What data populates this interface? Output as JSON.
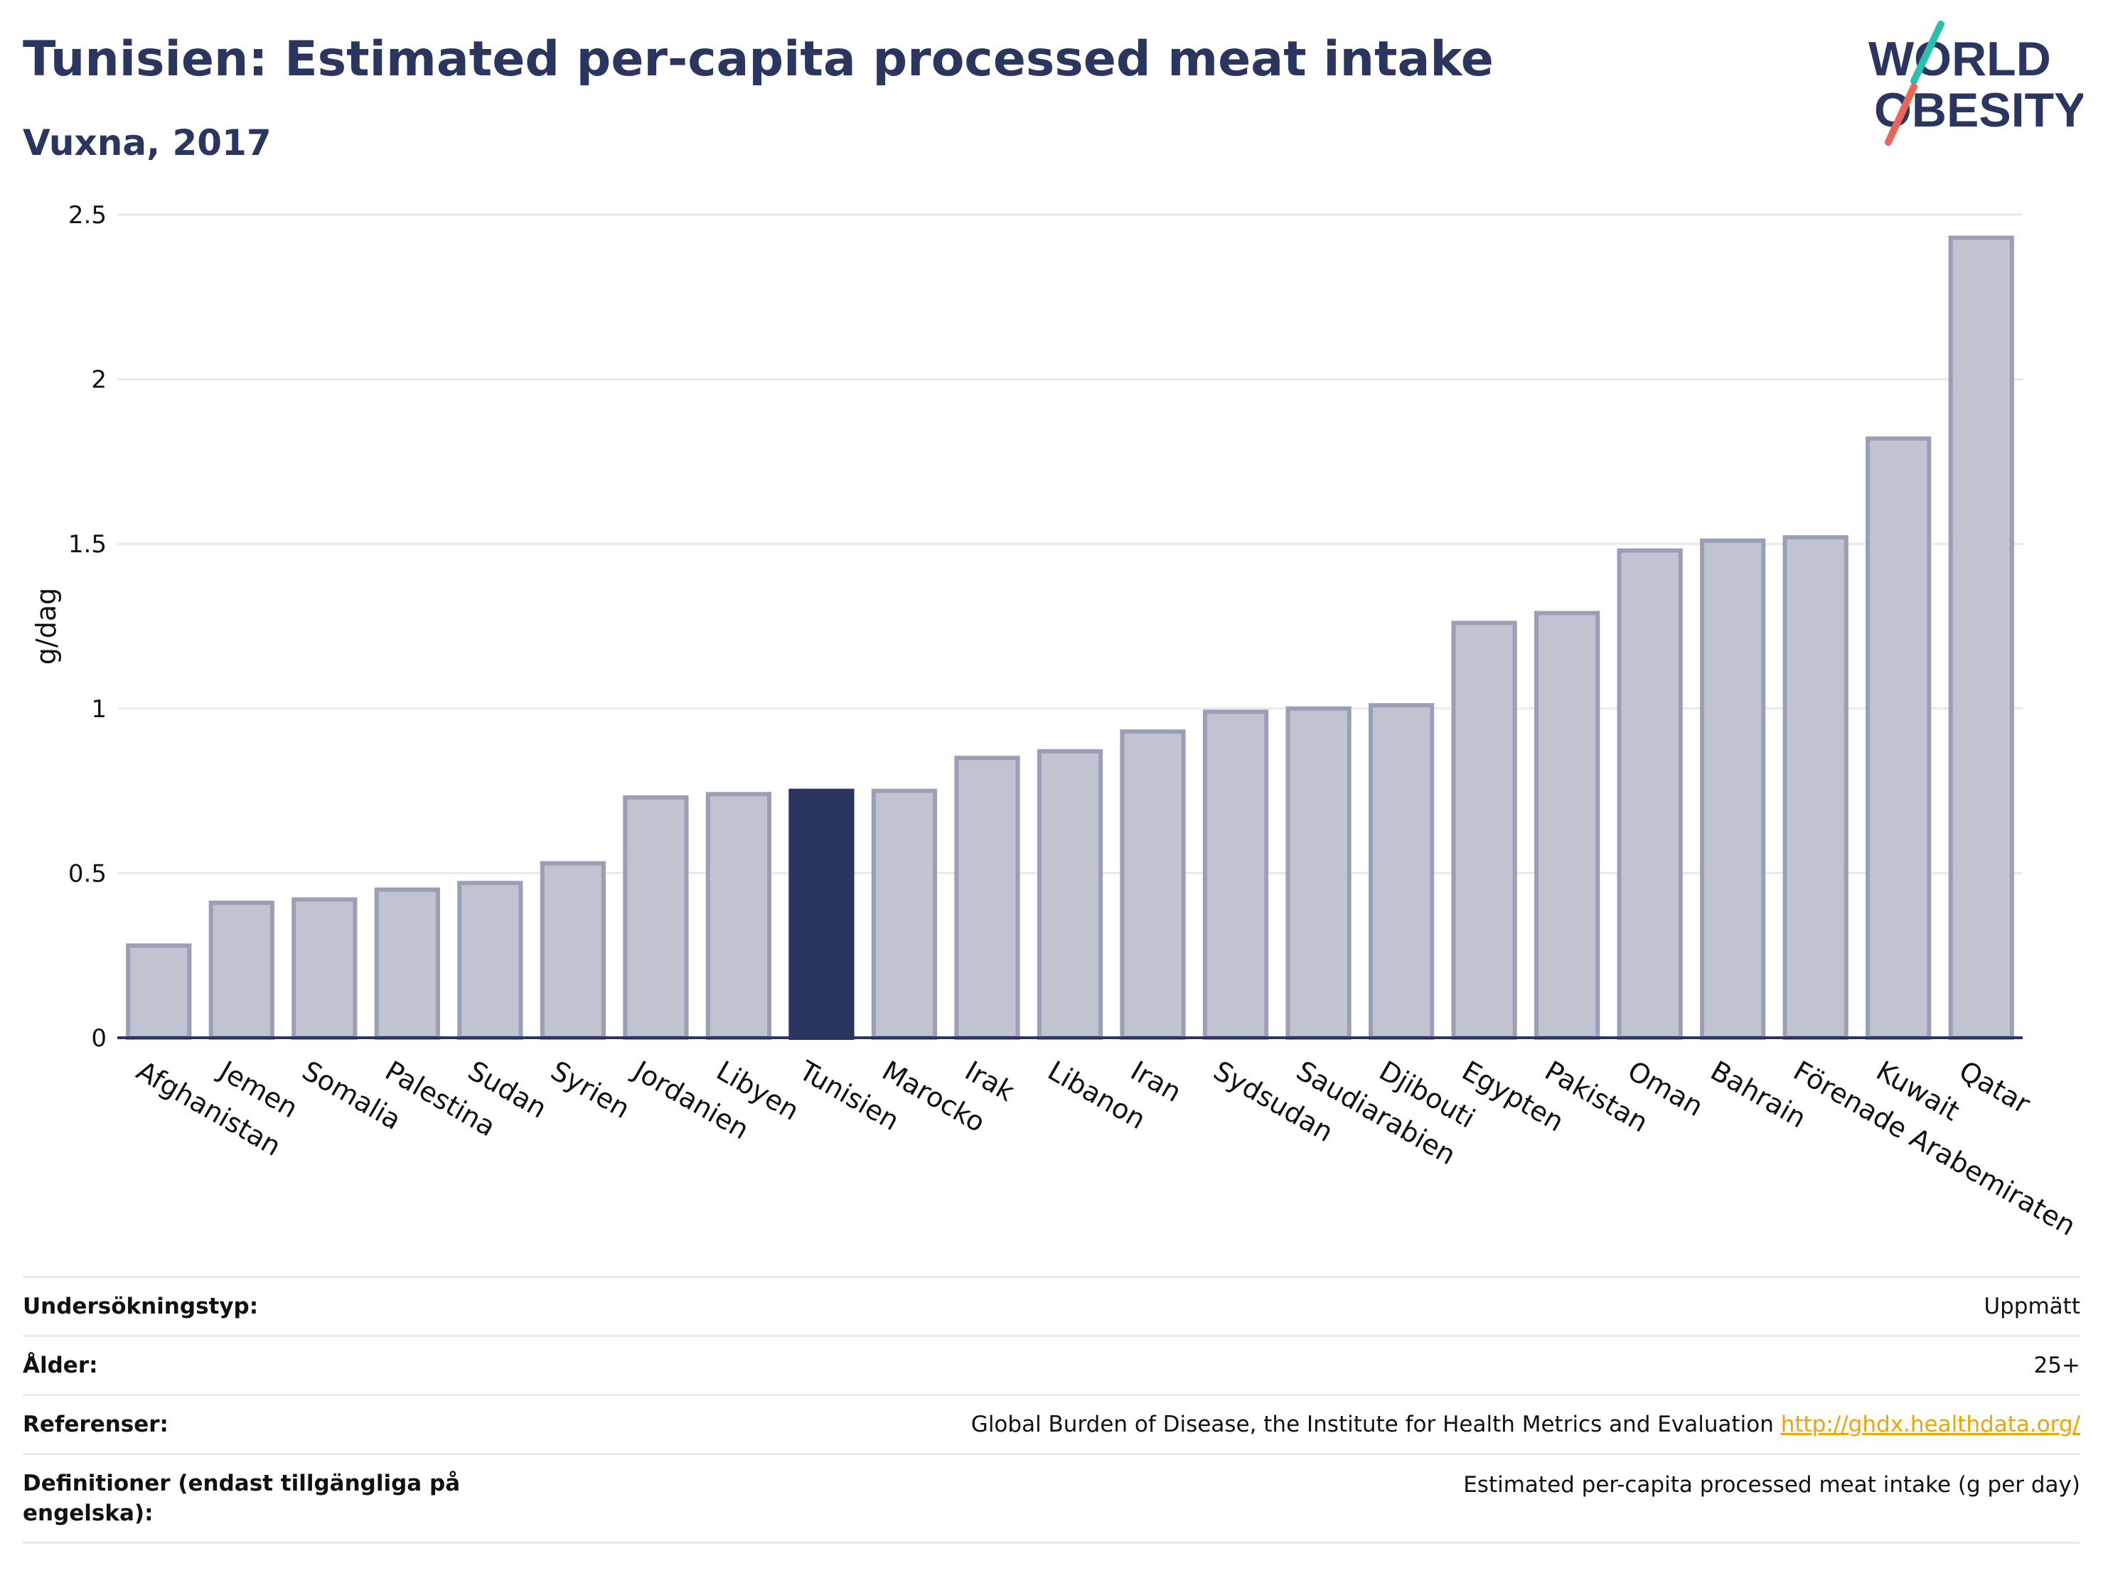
{
  "header": {
    "title": "Tunisien: Estimated per-capita processed meat intake",
    "subtitle": "Vuxna, 2017"
  },
  "logo": {
    "line1": "WORLD",
    "line2": "OBESITY",
    "teal": "#2bbfb0",
    "coral": "#e8675a",
    "navy": "#2a3560"
  },
  "chart_data": {
    "type": "bar",
    "ylabel": "g/dag",
    "ylim": [
      0,
      2.5
    ],
    "yticks": [
      0,
      0.5,
      1,
      1.5,
      2,
      2.5
    ],
    "grid": true,
    "highlight": "Tunisien",
    "categories": [
      "Afghanistan",
      "Jemen",
      "Somalia",
      "Palestina",
      "Sudan",
      "Syrien",
      "Jordanien",
      "Libyen",
      "Tunisien",
      "Marocko",
      "Irak",
      "Libanon",
      "Iran",
      "Sydsudan",
      "Saudiarabien",
      "Djibouti",
      "Egypten",
      "Pakistan",
      "Oman",
      "Bahrain",
      "Förenade Arabemiraten",
      "Kuwait",
      "Qatar"
    ],
    "values": [
      0.28,
      0.41,
      0.42,
      0.45,
      0.47,
      0.53,
      0.73,
      0.74,
      0.75,
      0.75,
      0.85,
      0.87,
      0.93,
      0.99,
      1.0,
      1.01,
      1.26,
      1.29,
      1.48,
      1.51,
      1.52,
      1.82,
      2.43
    ],
    "colors": {
      "bar": "#c0c3d0",
      "bar_edge": "#9a9fb6",
      "highlight": "#2a3560",
      "grid": "#e8e9ee",
      "axis": "#2a3560"
    }
  },
  "info": {
    "rows": [
      {
        "label": "Undersökningstyp:",
        "value": "Uppmätt"
      },
      {
        "label": "Ålder:",
        "value": "25+"
      },
      {
        "label": "Referenser:",
        "value": "Global Burden of Disease, the Institute for Health Metrics and Evaluation",
        "link": "http://ghdx.healthdata.org/"
      },
      {
        "label": "Definitioner (endast tillgängliga på engelska):",
        "value": "Estimated per-capita processed meat intake (g per day)"
      }
    ]
  }
}
